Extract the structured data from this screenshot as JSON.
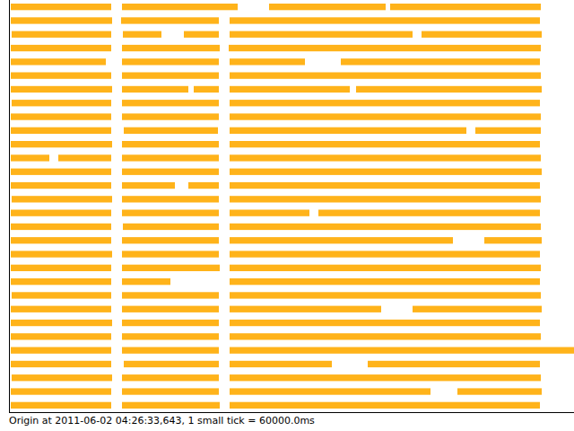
{
  "chart_data": {
    "type": "timeline",
    "caption": "Origin at 2011-06-02 04:26:33,643, 1 small tick = 60000.0ms",
    "color": "#ffb31a",
    "tick_labels": false,
    "xlim": [
      0,
      63
    ],
    "ylim": [
      0,
      30
    ],
    "lanes": [
      [
        [
          0.2,
          11.4
        ],
        [
          12.6,
          25.5
        ],
        [
          29,
          42
        ],
        [
          42.5,
          59.3
        ]
      ],
      [
        [
          0.2,
          11.5
        ],
        [
          12.5,
          23.4
        ],
        [
          24.6,
          59.2
        ]
      ],
      [
        [
          0.3,
          11.4
        ],
        [
          12.7,
          17
        ],
        [
          19.5,
          23.4
        ],
        [
          24.6,
          45
        ],
        [
          46,
          59.4
        ]
      ],
      [
        [
          0.2,
          11.4
        ],
        [
          12.6,
          23.5
        ],
        [
          24.5,
          59.3
        ]
      ],
      [
        [
          0.2,
          10.8
        ],
        [
          12.6,
          23.4
        ],
        [
          24.6,
          33
        ],
        [
          37,
          59.2
        ]
      ],
      [
        [
          0.2,
          11.4
        ],
        [
          12.6,
          23.4
        ],
        [
          24.6,
          59.3
        ]
      ],
      [
        [
          0.2,
          11.5
        ],
        [
          12.6,
          20
        ],
        [
          20.6,
          23.4
        ],
        [
          24.6,
          38
        ],
        [
          38.7,
          59.4
        ]
      ],
      [
        [
          0.3,
          11.4
        ],
        [
          12.6,
          23.4
        ],
        [
          24.6,
          59.2
        ]
      ],
      [
        [
          0.2,
          11.4
        ],
        [
          12.6,
          23.4
        ],
        [
          24.6,
          59.3
        ]
      ],
      [
        [
          0.2,
          11.4
        ],
        [
          12.8,
          23.3
        ],
        [
          24.6,
          51
        ],
        [
          52,
          59.3
        ]
      ],
      [
        [
          0.2,
          11.5
        ],
        [
          12.6,
          23.4
        ],
        [
          24.6,
          59.2
        ]
      ],
      [
        [
          0.2,
          4.5
        ],
        [
          5.5,
          11.4
        ],
        [
          12.6,
          23.4
        ],
        [
          24.6,
          59.3
        ]
      ],
      [
        [
          0.2,
          11.4
        ],
        [
          12.6,
          23.4
        ],
        [
          24.6,
          59.4
        ]
      ],
      [
        [
          0.2,
          11.4
        ],
        [
          12.6,
          18.5
        ],
        [
          20,
          23.4
        ],
        [
          24.6,
          59.2
        ]
      ],
      [
        [
          0.3,
          11.5
        ],
        [
          12.6,
          23.4
        ],
        [
          24.6,
          59.3
        ]
      ],
      [
        [
          0.2,
          11.4
        ],
        [
          12.6,
          23.4
        ],
        [
          24.6,
          33.5
        ],
        [
          34.5,
          59.2
        ]
      ],
      [
        [
          0.2,
          11.4
        ],
        [
          12.7,
          23.4
        ],
        [
          24.6,
          59.3
        ]
      ],
      [
        [
          0.2,
          11.4
        ],
        [
          12.6,
          23.4
        ],
        [
          24.6,
          49.5
        ],
        [
          53,
          59.4
        ]
      ],
      [
        [
          0.2,
          11.5
        ],
        [
          12.6,
          23.4
        ],
        [
          24.6,
          59.2
        ]
      ],
      [
        [
          0.2,
          11.4
        ],
        [
          12.6,
          23.5
        ],
        [
          24.6,
          59.3
        ]
      ],
      [
        [
          0.2,
          11.4
        ],
        [
          12.6,
          18
        ],
        [
          24.6,
          59.2
        ]
      ],
      [
        [
          0.3,
          11.4
        ],
        [
          12.6,
          23.4
        ],
        [
          24.6,
          59.3
        ]
      ],
      [
        [
          0.2,
          11.4
        ],
        [
          12.6,
          23.4
        ],
        [
          24.6,
          41.5
        ],
        [
          45,
          59.4
        ]
      ],
      [
        [
          0.2,
          11.5
        ],
        [
          12.6,
          23.4
        ],
        [
          24.6,
          59.2
        ]
      ],
      [
        [
          0.2,
          11.4
        ],
        [
          12.6,
          23.4
        ],
        [
          24.6,
          59.3
        ]
      ],
      [
        [
          0.2,
          11.4
        ],
        [
          12.6,
          23.4
        ],
        [
          24.6,
          63
        ]
      ],
      [
        [
          0.2,
          11.4
        ],
        [
          12.8,
          23.4
        ],
        [
          24.6,
          36
        ],
        [
          40,
          59.2
        ]
      ],
      [
        [
          0.3,
          11.5
        ],
        [
          12.6,
          23.4
        ],
        [
          24.6,
          59.3
        ]
      ],
      [
        [
          0.2,
          11.4
        ],
        [
          12.6,
          23.4
        ],
        [
          24.6,
          47
        ],
        [
          50,
          59.4
        ]
      ],
      [
        [
          0.2,
          11.4
        ],
        [
          12.6,
          23.5
        ],
        [
          24.6,
          59.2
        ]
      ]
    ]
  }
}
